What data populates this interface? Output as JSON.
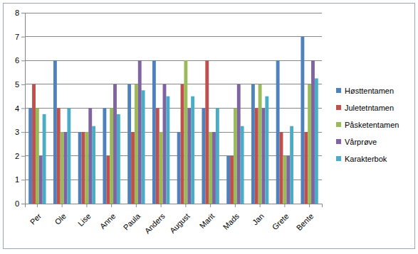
{
  "chart_data": {
    "type": "bar",
    "categories": [
      "Per",
      "Ole",
      "Lise",
      "Anne",
      "Paula",
      "Anders",
      "August",
      "Marit",
      "Mads",
      "Jan",
      "Grete",
      "Bente"
    ],
    "series": [
      {
        "name": "Høsttentamen",
        "color": "#4f81bd",
        "values": [
          4,
          6,
          3,
          4,
          5,
          6,
          3,
          4,
          2,
          5,
          6,
          7
        ]
      },
      {
        "name": "Juletetntamen",
        "color": "#c0504d",
        "values": [
          5,
          4,
          3,
          2,
          3,
          4,
          5,
          6,
          2,
          4,
          3,
          3
        ]
      },
      {
        "name": "Påsketentamen",
        "color": "#9bbb59",
        "values": [
          4,
          3,
          3,
          4,
          5,
          3,
          6,
          3,
          4,
          5,
          2,
          5
        ]
      },
      {
        "name": "Vårprøve",
        "color": "#8064a2",
        "values": [
          2,
          3,
          4,
          5,
          6,
          5,
          4,
          3,
          5,
          4,
          2,
          6
        ]
      },
      {
        "name": "Karakterbok",
        "color": "#4bacc6",
        "values": [
          3.75,
          4,
          3.25,
          3.75,
          4.75,
          4.5,
          4.5,
          4,
          3.25,
          4.5,
          3.25,
          5.25
        ]
      }
    ],
    "ylim": [
      0,
      8
    ],
    "yticks": [
      0,
      1,
      2,
      3,
      4,
      5,
      6,
      7,
      8
    ],
    "grid": true,
    "legend": "right"
  }
}
